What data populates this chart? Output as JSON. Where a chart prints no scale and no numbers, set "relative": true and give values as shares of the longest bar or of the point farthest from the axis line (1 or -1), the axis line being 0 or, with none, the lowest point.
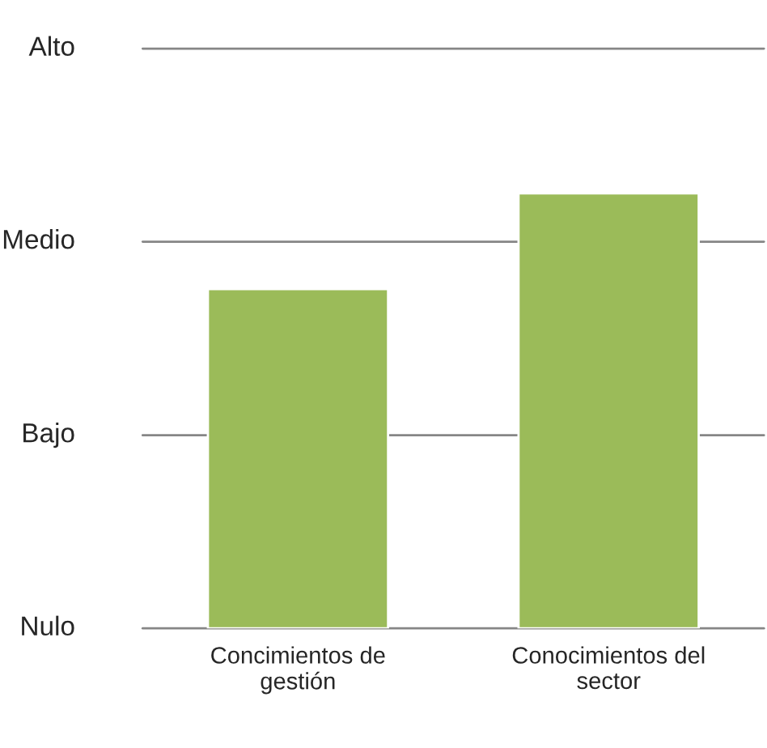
{
  "chart_data": {
    "type": "bar",
    "categories": [
      "Concimientos de\ngestión",
      "Conocimientos del\nsector"
    ],
    "values": [
      0.78,
      1
    ],
    "relative": true,
    "color": "#9bbb59",
    "ref_lines": [
      {
        "axis": "y",
        "value": 0,
        "label": "Nulo",
        "color": "#868686"
      },
      {
        "axis": "y",
        "value": 0.444,
        "label": "Bajo",
        "color": "#868686"
      },
      {
        "axis": "y",
        "value": 0.889,
        "label": "Medio",
        "color": "#868686"
      },
      {
        "axis": "y",
        "value": 1.333,
        "label": "Alto",
        "color": "#868686"
      }
    ],
    "legend": false
  }
}
